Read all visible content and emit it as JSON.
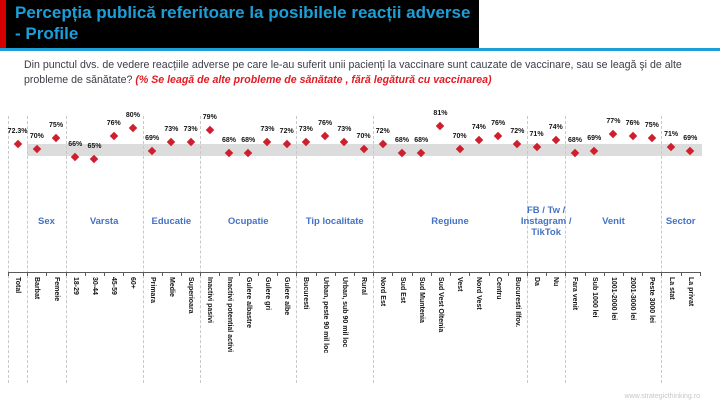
{
  "header": {
    "title": "Percepția publică referitoare la posibilele reacții adverse - Profile",
    "accent_color": "#1c9fd9",
    "panel_color": "#000000",
    "left_bar_color": "#d40000"
  },
  "question": {
    "text": "Din punctul dvs. de vedere reacțiile adverse pe care le-au suferit unii pacienți la vaccinare sunt cauzate de vaccinare, sau se leagă şi de alte probleme de sănătate? ",
    "highlight": "(% Se leagă de alte probleme de sănătate , fără legătură cu vaccinarea)"
  },
  "chart_data": {
    "type": "scatter",
    "title": "Percepția publică referitoare la posibilele reacții adverse - Profile",
    "series_label": "% Se leagă de alte probleme de sănătate, fără legătură cu vaccinarea",
    "categories": [
      "Total",
      "Barbat",
      "Femeie",
      "18-29",
      "30-44",
      "45-59",
      "60+",
      "Primara",
      "Medie",
      "Superioara",
      "Inactivi pasivi",
      "Inactivi potential activi",
      "Gulere albastre",
      "Gulere gri",
      "Gulere albe",
      "Bucuresti",
      "Urban, peste 90 mil loc",
      "Urban, sub 90 mil loc",
      "Rural",
      "Nord Est",
      "Sud Est",
      "Sud Muntenia",
      "Sud Vest Oltenia",
      "Vest",
      "Nord Vest",
      "Centru",
      "Bucuresti Ilfov.",
      "Da",
      "Nu",
      "Fara venit",
      "Sub 1000 lei",
      "1001-2000 lei",
      "2001-3000 lei",
      "Peste 3000 lei",
      "La stat",
      "La privat"
    ],
    "values": [
      72.3,
      70,
      75,
      66,
      65,
      76,
      80,
      69,
      73,
      73,
      79,
      68,
      68,
      73,
      72,
      73,
      76,
      73,
      70,
      72,
      68,
      68,
      81,
      70,
      74,
      76,
      72,
      71,
      74,
      68,
      69,
      77,
      76,
      75,
      71,
      69
    ],
    "point_labels": [
      "72.3%",
      "70%",
      "75%",
      "66%",
      "65%",
      "76%",
      "80%",
      "69%",
      "73%",
      "73%",
      "79%",
      "68%",
      "68%",
      "73%",
      "72%",
      "73%",
      "76%",
      "73%",
      "70%",
      "72%",
      "68%",
      "68%",
      "81%",
      "70%",
      "74%",
      "76%",
      "72%",
      "71%",
      "74%",
      "68%",
      "69%",
      "77%",
      "76%",
      "75%",
      "71%",
      "69%"
    ],
    "groups": [
      {
        "label": "Sex",
        "from": 1,
        "to": 2
      },
      {
        "label": "Varsta",
        "from": 3,
        "to": 6
      },
      {
        "label": "Educatie",
        "from": 7,
        "to": 9
      },
      {
        "label": "Ocupatie",
        "from": 10,
        "to": 14
      },
      {
        "label": "Tip localitate",
        "from": 15,
        "to": 18
      },
      {
        "label": "Regiune",
        "from": 19,
        "to": 26
      },
      {
        "label": "FB / Tw / Instagram / TikTok",
        "from": 27,
        "to": 28
      },
      {
        "label": "Venit",
        "from": 29,
        "to": 33
      },
      {
        "label": "Sector",
        "from": 34,
        "to": 35
      }
    ],
    "band": {
      "low": 66.5,
      "high": 72.3
    },
    "ylim": [
      63,
      84
    ],
    "grid": "dashed-vertical-group-separators",
    "legend_position": "none",
    "marker_color": "#cf1f2e",
    "band_color": "#dcdcdc",
    "group_label_color": "#4472c4"
  },
  "watermark": "www.strategicthinking.ro"
}
